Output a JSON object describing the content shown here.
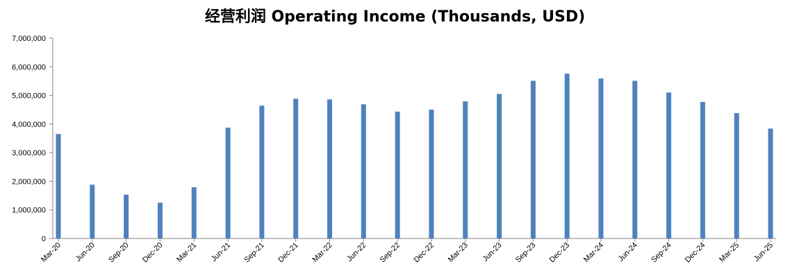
{
  "chart_data": {
    "type": "bar",
    "title": "经营利润 Operating Income (Thousands, USD)",
    "xlabel": "",
    "ylabel": "",
    "ylim": [
      0,
      7000000
    ],
    "y_ticks": [
      "0",
      "1,000,000",
      "2,000,000",
      "3,000,000",
      "4,000,000",
      "5,000,000",
      "6,000,000",
      "7,000,000"
    ],
    "categories": [
      "Mar-20",
      "Jun-20",
      "Sep-20",
      "Dec-20",
      "Mar-21",
      "Jun-21",
      "Sep-21",
      "Dec-21",
      "Mar-22",
      "Jun-22",
      "Sep-22",
      "Dec-22",
      "Mar-23",
      "Jun-23",
      "Sep-23",
      "Dec-23",
      "Mar-24",
      "Jun-24",
      "Sep-24",
      "Dec-24",
      "Mar-25",
      "Jun-25"
    ],
    "values": [
      3650000,
      1880000,
      1530000,
      1250000,
      1790000,
      3870000,
      4640000,
      4880000,
      4860000,
      4690000,
      4430000,
      4500000,
      4790000,
      5050000,
      5510000,
      5760000,
      5590000,
      5510000,
      5100000,
      4770000,
      4380000,
      3840000
    ],
    "bar_color": "#4F81BD",
    "grid": false,
    "legend": "none"
  }
}
